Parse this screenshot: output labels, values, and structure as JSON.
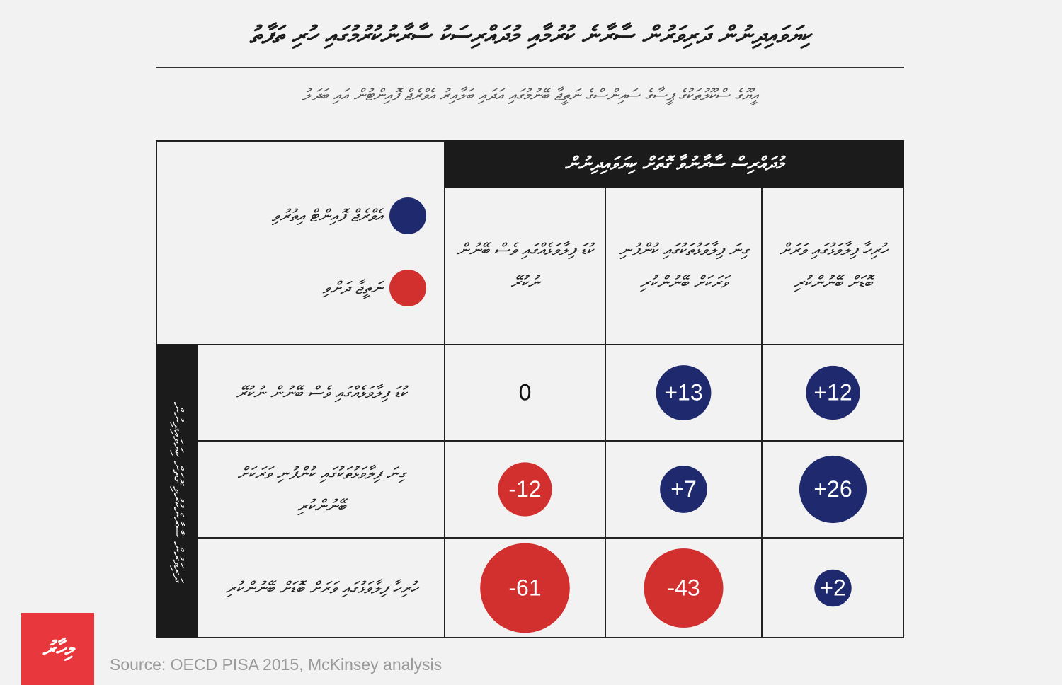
{
  "header": {
    "title": "ކިޔަވައިދިނުން ދަރިވަރުން ސާރާނެ ކުރުމާއި މުދައްރިސަކު ސާރާނުކުރުމުގައި ހުރި ތަފާތު",
    "subtitle": "އީޔޫގެ ސްކޫލުތަކުގެ ޕީސާގެ ސައިންސްގެ ނަތީޖާ ބޭނުމުގައި އަދައި ބަލާއިރު އެވްރެޖް ފޮއިންޓުން އައި ބަދަލު"
  },
  "chart_data": {
    "type": "bubble_matrix",
    "column_header": "މުދައްރިސް ސާރާނުވާ ގޮތަށް ކިޔަވައިދިނުން",
    "row_header": "ދަރިވަރުން ސާރާނެކުރުވި ގޮތަށް ކިޔަވައިދިނުން",
    "columns": [
      "ހުރިހާ ފިލާވަޅުގައި ވަރަށް ބޮޑަށް ބޭނުންކުރި",
      "ގިނަ ފިލާވަޅުތަކުގައި ކުންފުނި ވަރަކަށް ބޭނުންކުރި",
      "ކުޑަ ފިލާވަޅެއްގައި ވެސް ބޭނުން ނުކުރޭ"
    ],
    "rows": [
      "ކުޑަ ފިލާވަޅެއްގައި ވެސް ބޭނުން ނުކުރޭ",
      "ގިނަ ފިލާވަޅުތަކުގައި ކުންފުނި ވަރަކަށް ބޭނުންކުރި",
      "ހުރިހާ ފިލާވަޅުގައި ވަރަށް ބޮޑަށް ބޭނުންކުރި"
    ],
    "values": [
      [
        12,
        13,
        0
      ],
      [
        26,
        7,
        -12
      ],
      [
        2,
        -43,
        -61
      ]
    ],
    "value_labels": [
      [
        "+12",
        "+13",
        "0"
      ],
      [
        "+26",
        "+7",
        "-12"
      ],
      [
        "+2",
        "-43",
        "-61"
      ]
    ],
    "legend": [
      {
        "name": "އެވްރެޖް ފޮއިންޓް އިތުރުވި",
        "color": "#1f2a6e"
      },
      {
        "name": "ނަތީޖާ ދަށްވި",
        "color": "#d2302f"
      }
    ]
  },
  "source": "Source: OECD PISA 2015, McKinsey analysis",
  "logo": "މިހާރު"
}
